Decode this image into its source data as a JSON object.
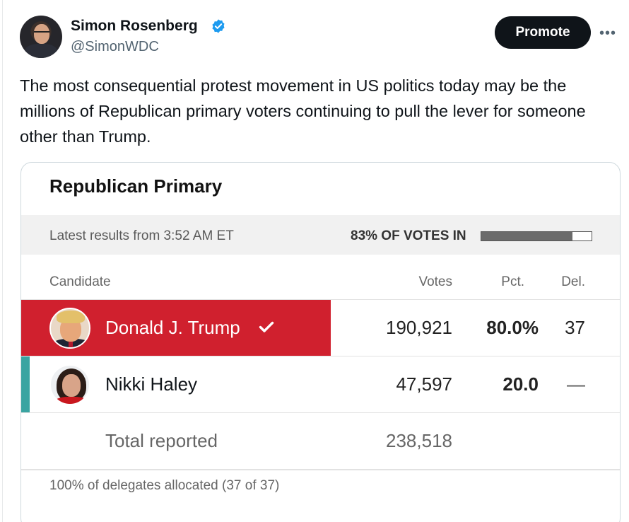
{
  "author": {
    "name": "Simon Rosenberg",
    "handle": "@SimonWDC",
    "verified": true
  },
  "header": {
    "promote_label": "Promote",
    "more_icon": "more-horizontal-icon"
  },
  "tweet": {
    "text": "The most consequential protest movement in US politics today may be the millions of Republican primary voters continuing to pull the lever for someone other than Trump."
  },
  "results": {
    "title": "Republican Primary",
    "latest": "Latest results from 3:52 AM ET",
    "votes_in_label": "83% OF VOTES IN",
    "votes_in_fraction": 0.83,
    "columns": {
      "candidate": "Candidate",
      "votes": "Votes",
      "pct": "Pct.",
      "del": "Del."
    },
    "candidates": [
      {
        "name": "Donald J. Trump",
        "votes": "190,921",
        "pct": "80.0%",
        "del": "37",
        "winner": true,
        "color": "#d0202e"
      },
      {
        "name": "Nikki Haley",
        "votes": "47,597",
        "pct": "20.0",
        "del": "—",
        "winner": false,
        "color": "#3aa4a1"
      }
    ],
    "total": {
      "label": "Total reported",
      "votes": "238,518"
    },
    "footer": "100% of delegates allocated (37 of 37)"
  },
  "colors": {
    "winner_red": "#d0202e",
    "haley_teal": "#3aa4a1",
    "verified_blue": "#1d9bf0"
  }
}
